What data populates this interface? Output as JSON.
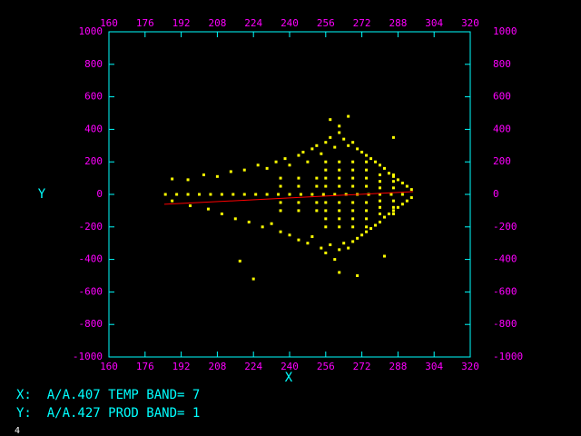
{
  "chart_data": {
    "type": "scatter",
    "x_label": "X",
    "y_label": "Y",
    "xlim": [
      160,
      320
    ],
    "ylim": [
      -1000,
      1000
    ],
    "xticks": [
      160,
      176,
      192,
      208,
      224,
      240,
      256,
      272,
      288,
      304,
      320
    ],
    "yticks": [
      -1000,
      -800,
      -600,
      -400,
      -200,
      0,
      200,
      400,
      600,
      800,
      1000
    ],
    "series": [
      {
        "color": "#ffff00",
        "x": [
          185,
          190,
          195,
          200,
          205,
          210,
          215,
          220,
          225,
          230,
          235,
          240,
          245,
          250,
          255,
          260,
          265,
          270,
          275,
          280,
          285,
          290,
          188,
          195,
          202,
          208,
          214,
          220,
          226,
          230,
          234,
          238,
          240,
          244,
          246,
          248,
          250,
          252,
          254,
          256,
          258,
          260,
          262,
          264,
          266,
          268,
          270,
          272,
          274,
          276,
          278,
          280,
          282,
          284,
          286,
          288,
          290,
          292,
          294,
          188,
          196,
          204,
          210,
          216,
          222,
          228,
          232,
          236,
          240,
          244,
          248,
          250,
          254,
          256,
          258,
          260,
          262,
          264,
          266,
          268,
          270,
          272,
          274,
          276,
          278,
          280,
          282,
          284,
          286,
          288,
          290,
          292,
          294,
          256,
          256,
          256,
          256,
          256,
          256,
          256,
          256,
          262,
          262,
          262,
          262,
          262,
          262,
          262,
          262,
          268,
          268,
          268,
          268,
          268,
          268,
          268,
          268,
          274,
          274,
          274,
          274,
          274,
          274,
          274,
          274,
          280,
          280,
          280,
          280,
          280,
          280,
          286,
          286,
          286,
          286,
          286,
          286,
          236,
          236,
          236,
          236,
          244,
          244,
          244,
          244,
          252,
          252,
          252,
          252,
          218,
          224,
          262,
          258,
          262,
          270,
          286,
          282,
          266
        ],
        "values": [
          0,
          0,
          0,
          0,
          0,
          0,
          0,
          0,
          0,
          0,
          0,
          0,
          0,
          0,
          0,
          0,
          0,
          0,
          0,
          0,
          0,
          0,
          95,
          90,
          120,
          110,
          140,
          150,
          180,
          160,
          200,
          220,
          180,
          240,
          260,
          200,
          280,
          300,
          250,
          320,
          350,
          290,
          380,
          340,
          300,
          320,
          280,
          260,
          240,
          220,
          200,
          180,
          160,
          130,
          110,
          90,
          70,
          50,
          30,
          -40,
          -70,
          -90,
          -120,
          -150,
          -170,
          -200,
          -180,
          -230,
          -250,
          -280,
          -300,
          -260,
          -330,
          -360,
          -310,
          -400,
          -340,
          -300,
          -330,
          -290,
          -270,
          -250,
          -230,
          -210,
          -190,
          -170,
          -140,
          -120,
          -100,
          -80,
          -60,
          -40,
          -20,
          -200,
          -150,
          -100,
          -50,
          50,
          100,
          150,
          200,
          -200,
          -150,
          -100,
          -50,
          50,
          100,
          150,
          200,
          -200,
          -150,
          -100,
          -50,
          50,
          100,
          150,
          200,
          -200,
          -150,
          -100,
          -50,
          50,
          100,
          150,
          200,
          -120,
          -80,
          -40,
          40,
          80,
          120,
          -120,
          -80,
          -40,
          40,
          80,
          120,
          -100,
          -50,
          50,
          100,
          -100,
          -50,
          50,
          100,
          -100,
          -50,
          50,
          100,
          -410,
          -520,
          420,
          460,
          -480,
          -500,
          350,
          -380,
          480
        ]
      }
    ],
    "fit_line": {
      "color": "#ff0000",
      "x": [
        184.5,
        294.7
      ],
      "values": [
        -61,
        17
      ]
    }
  },
  "info": {
    "line1": "X:  A/A.407 TEMP BAND= 7",
    "line2": "Y:  A/A.427 PROD BAND= 1",
    "footer": "4"
  }
}
